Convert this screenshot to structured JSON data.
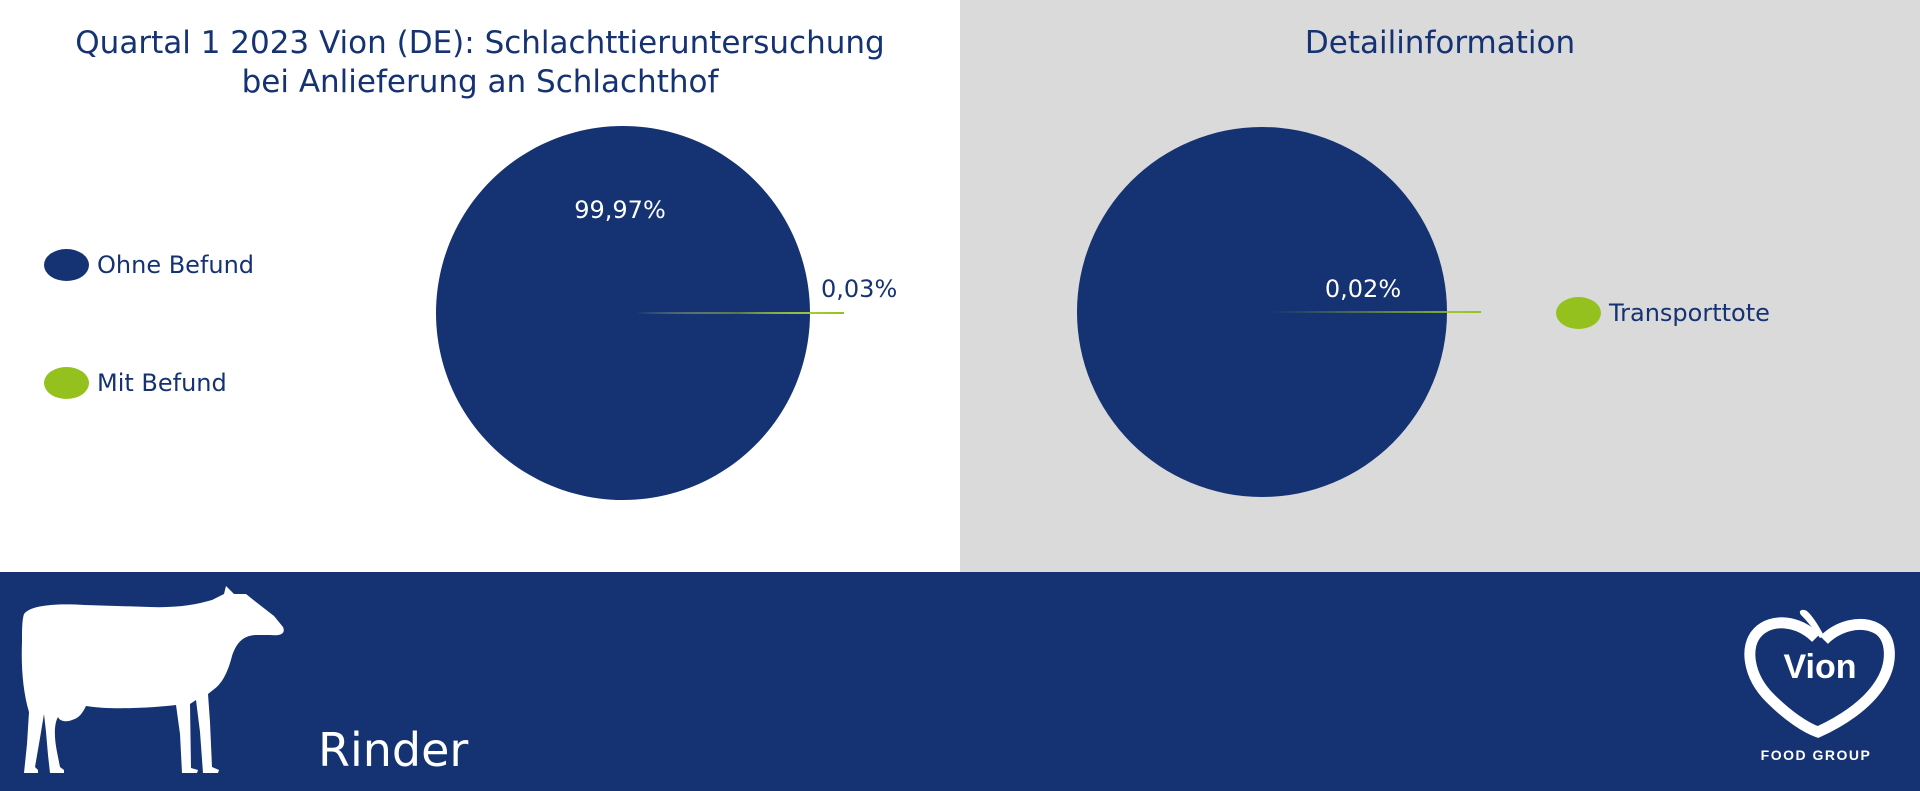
{
  "colors": {
    "navy": "#153273",
    "green": "#95c11f",
    "grey": "#dadada",
    "white": "#ffffff"
  },
  "main_title_lines": [
    "Quartal 1 2023 Vion (DE): Schlachttieruntersuchung",
    "bei Anlieferung an Schlachthof"
  ],
  "detail_title": "Detailinformation",
  "chart_data": [
    {
      "type": "pie",
      "title": "Quartal 1 2023 Vion (DE): Schlachttieruntersuchung bei Anlieferung an Schlachthof",
      "categories": [
        "Ohne Befund",
        "Mit Befund"
      ],
      "values": [
        99.97,
        0.03
      ],
      "labels": [
        "99,97%",
        "0,03%"
      ],
      "colors": [
        "#153273",
        "#95c11f"
      ],
      "legend_position": "left"
    },
    {
      "type": "pie",
      "title": "Detailinformation",
      "categories": [
        "Transporttote"
      ],
      "values": [
        0.02
      ],
      "labels": [
        "0,02%"
      ],
      "colors": [
        "#95c11f"
      ],
      "legend_position": "right"
    }
  ],
  "footer": {
    "category_label": "Rinder",
    "logo_text": "Vion",
    "logo_subtext": "FOOD GROUP",
    "animal_icon": "cow-icon"
  }
}
